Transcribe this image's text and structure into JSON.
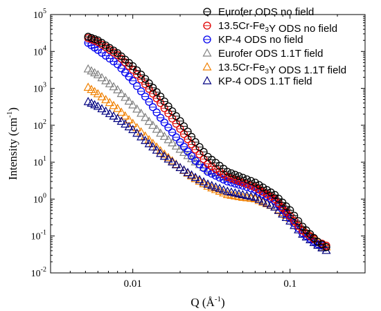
{
  "chart_data": {
    "type": "scatter",
    "xlabel": "Q (Å",
    "xlabel_sup": "-1",
    "xlabel_suffix": ")",
    "ylabel": "Intensity (cm",
    "ylabel_sup": "-1",
    "ylabel_suffix": ")",
    "x_scale": "log",
    "y_scale": "log",
    "xlim": [
      0.003,
      0.3
    ],
    "ylim": [
      0.01,
      100000
    ],
    "x_ticks": [
      {
        "value": 0.01,
        "label": "0.01"
      },
      {
        "value": 0.1,
        "label": "0.1"
      }
    ],
    "y_ticks": [
      {
        "value": 0.01,
        "base": "10",
        "exp": "-2"
      },
      {
        "value": 0.1,
        "base": "10",
        "exp": "-1"
      },
      {
        "value": 1,
        "base": "10",
        "exp": "0"
      },
      {
        "value": 10,
        "base": "10",
        "exp": "1"
      },
      {
        "value": 100,
        "base": "10",
        "exp": "2"
      },
      {
        "value": 1000,
        "base": "10",
        "exp": "3"
      },
      {
        "value": 10000,
        "base": "10",
        "exp": "4"
      },
      {
        "value": 100000,
        "base": "10",
        "exp": "5"
      }
    ],
    "grid": false,
    "legend_position": "top-right",
    "series": [
      {
        "name": "Eurofer ODS no field",
        "name_parts": [
          {
            "t": "Eurofer ODS no field"
          }
        ],
        "marker": "circle-cross",
        "color": "#000000",
        "points": [
          [
            0.0052,
            25000
          ],
          [
            0.006,
            20000
          ],
          [
            0.008,
            9000
          ],
          [
            0.01,
            4000
          ],
          [
            0.012,
            1800
          ],
          [
            0.015,
            600
          ],
          [
            0.02,
            130
          ],
          [
            0.025,
            35
          ],
          [
            0.03,
            14
          ],
          [
            0.04,
            5.5
          ],
          [
            0.05,
            3.8
          ],
          [
            0.06,
            2.8
          ],
          [
            0.08,
            1.3
          ],
          [
            0.1,
            0.5
          ],
          [
            0.12,
            0.18
          ],
          [
            0.15,
            0.07
          ],
          [
            0.17,
            0.05
          ]
        ]
      },
      {
        "name": "13.5Cr-Fe3Y ODS no field",
        "name_parts": [
          {
            "t": "13.5Cr-Fe"
          },
          {
            "t": "3",
            "sub": true
          },
          {
            "t": "Y ODS no field"
          }
        ],
        "marker": "circle-cross",
        "color": "#e00000",
        "points": [
          [
            0.0052,
            23000
          ],
          [
            0.006,
            18000
          ],
          [
            0.008,
            8000
          ],
          [
            0.01,
            3200
          ],
          [
            0.012,
            1300
          ],
          [
            0.015,
            400
          ],
          [
            0.02,
            80
          ],
          [
            0.025,
            22
          ],
          [
            0.03,
            9
          ],
          [
            0.04,
            4
          ],
          [
            0.05,
            2.8
          ],
          [
            0.06,
            2.1
          ],
          [
            0.08,
            1.0
          ],
          [
            0.1,
            0.35
          ],
          [
            0.12,
            0.14
          ],
          [
            0.15,
            0.07
          ],
          [
            0.17,
            0.055
          ]
        ]
      },
      {
        "name": "KP-4 ODS no field",
        "name_parts": [
          {
            "t": "KP-4 ODS no field"
          }
        ],
        "marker": "circle-cross",
        "color": "#0000ee",
        "points": [
          [
            0.0052,
            17000
          ],
          [
            0.006,
            11000
          ],
          [
            0.008,
            4500
          ],
          [
            0.01,
            1600
          ],
          [
            0.012,
            600
          ],
          [
            0.015,
            160
          ],
          [
            0.02,
            35
          ],
          [
            0.025,
            11
          ],
          [
            0.03,
            5.5
          ],
          [
            0.04,
            3
          ],
          [
            0.05,
            2.3
          ],
          [
            0.06,
            1.8
          ],
          [
            0.08,
            0.9
          ],
          [
            0.1,
            0.3
          ],
          [
            0.12,
            0.12
          ],
          [
            0.15,
            0.06
          ],
          [
            0.17,
            0.05
          ]
        ]
      },
      {
        "name": "Eurofer ODS 1.1T field",
        "name_parts": [
          {
            "t": "Eurofer ODS 1.1T field"
          }
        ],
        "marker": "triangle",
        "color": "#808080",
        "points": [
          [
            0.0052,
            3300
          ],
          [
            0.006,
            2300
          ],
          [
            0.008,
            900
          ],
          [
            0.01,
            350
          ],
          [
            0.012,
            160
          ],
          [
            0.015,
            60
          ],
          [
            0.02,
            22
          ],
          [
            0.025,
            10
          ],
          [
            0.03,
            6
          ],
          [
            0.04,
            3.8
          ],
          [
            0.05,
            3
          ],
          [
            0.06,
            2.3
          ],
          [
            0.08,
            1.1
          ],
          [
            0.1,
            0.42
          ],
          [
            0.12,
            0.16
          ],
          [
            0.15,
            0.06
          ],
          [
            0.17,
            0.04
          ]
        ]
      },
      {
        "name": "13.5Cr-Fe3Y ODS 1.1T field",
        "name_parts": [
          {
            "t": "13.5Cr-Fe"
          },
          {
            "t": "3",
            "sub": true
          },
          {
            "t": "Y ODS 1.1T field"
          }
        ],
        "marker": "triangle",
        "color": "#f08000",
        "points": [
          [
            0.0052,
            1050
          ],
          [
            0.006,
            700
          ],
          [
            0.008,
            280
          ],
          [
            0.01,
            110
          ],
          [
            0.012,
            50
          ],
          [
            0.015,
            20
          ],
          [
            0.02,
            7
          ],
          [
            0.025,
            3.5
          ],
          [
            0.03,
            2.2
          ],
          [
            0.04,
            1.3
          ],
          [
            0.05,
            1.1
          ],
          [
            0.06,
            1.0
          ],
          [
            0.08,
            0.6
          ],
          [
            0.1,
            0.3
          ],
          [
            0.12,
            0.14
          ],
          [
            0.15,
            0.07
          ],
          [
            0.17,
            0.05
          ]
        ]
      },
      {
        "name": "KP-4 ODS 1.1T field",
        "name_parts": [
          {
            "t": "KP-4 ODS 1.1T field"
          }
        ],
        "marker": "triangle",
        "color": "#000080",
        "points": [
          [
            0.0052,
            430
          ],
          [
            0.006,
            320
          ],
          [
            0.008,
            150
          ],
          [
            0.01,
            75
          ],
          [
            0.012,
            38
          ],
          [
            0.015,
            17
          ],
          [
            0.02,
            7
          ],
          [
            0.025,
            3.8
          ],
          [
            0.03,
            2.5
          ],
          [
            0.04,
            1.6
          ],
          [
            0.05,
            1.3
          ],
          [
            0.06,
            1.1
          ],
          [
            0.08,
            0.6
          ],
          [
            0.1,
            0.25
          ],
          [
            0.12,
            0.11
          ],
          [
            0.15,
            0.055
          ],
          [
            0.17,
            0.04
          ]
        ]
      }
    ]
  }
}
